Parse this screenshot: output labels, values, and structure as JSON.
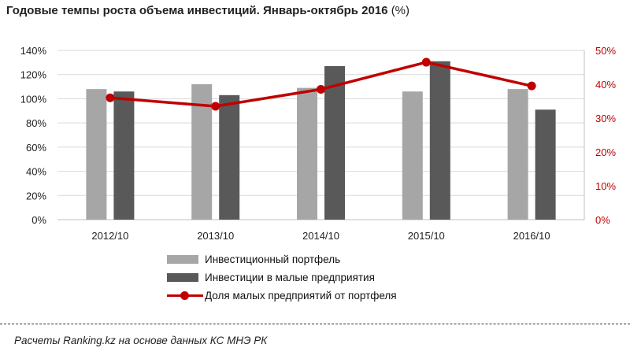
{
  "title": {
    "main": "Годовые темпы роста объема инвестиций.  Январь-октябрь  2016",
    "suffix": "(%)"
  },
  "colors": {
    "portfolio": "#a6a6a6",
    "small_business": "#595959",
    "share": "#c00000",
    "grid": "#d9d9d9",
    "axis_text": "#222222"
  },
  "chart_data": {
    "type": "bar",
    "categories": [
      "2012/10",
      "2013/10",
      "2014/10",
      "2015/10",
      "2016/10"
    ],
    "series": [
      {
        "name": "Инвестиционный портфель",
        "type": "bar",
        "axis": "left",
        "values": [
          108,
          112,
          109,
          106,
          108
        ]
      },
      {
        "name": "Инвестиции в малые предприятия",
        "type": "bar",
        "axis": "left",
        "values": [
          106,
          103,
          127,
          131,
          91
        ]
      },
      {
        "name": "Доля малых предприятий от портфеля",
        "type": "line",
        "axis": "right",
        "values": [
          36,
          33.5,
          38.5,
          46.5,
          39.5
        ]
      }
    ],
    "y_left": {
      "lim": [
        0,
        140
      ],
      "ticks": [
        0,
        20,
        40,
        60,
        80,
        100,
        120,
        140
      ],
      "tick_labels": [
        "0%",
        "20%",
        "40%",
        "60%",
        "80%",
        "100%",
        "120%",
        "140%"
      ]
    },
    "y_right": {
      "lim": [
        0,
        50
      ],
      "ticks": [
        0,
        10,
        20,
        30,
        40,
        50
      ],
      "tick_labels": [
        "0%",
        "10%",
        "20%",
        "30%",
        "40%",
        "50%"
      ]
    },
    "grid": true,
    "legend_position": "bottom"
  },
  "footer": {
    "source": "Расчеты Ranking.kz на основе данных  КС МНЭ РК"
  }
}
